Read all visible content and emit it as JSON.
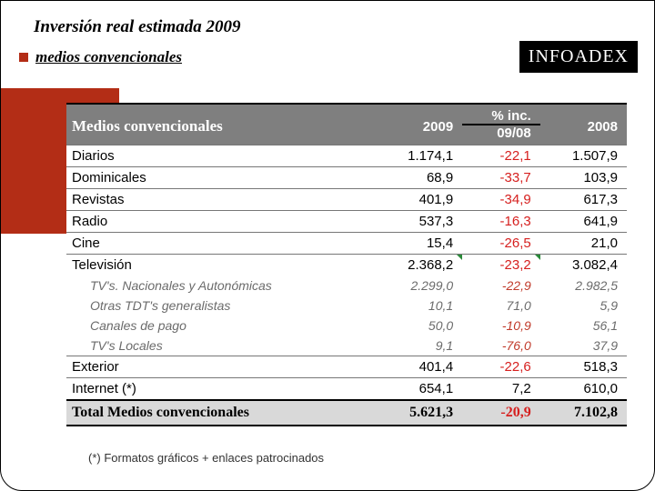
{
  "title": "Inversión real estimada 2009",
  "subtitle": "medios convencionales",
  "logo": "INFOADEX",
  "footnote": "(*) Formatos gráficos + enlaces patrocinados",
  "table": {
    "header": {
      "col1": "Medios convencionales",
      "col2": "2009",
      "col3_top": "% inc.",
      "col3_bot": "09/08",
      "col4": "2008"
    },
    "rows": [
      {
        "type": "main",
        "label": "Diarios",
        "v2009": "1.174,1",
        "pct": "-22,1",
        "v2008": "1.507,9"
      },
      {
        "type": "main",
        "label": "Dominicales",
        "v2009": "68,9",
        "pct": "-33,7",
        "v2008": "103,9"
      },
      {
        "type": "main",
        "label": "Revistas",
        "v2009": "401,9",
        "pct": "-34,9",
        "v2008": "617,3"
      },
      {
        "type": "main",
        "label": "Radio",
        "v2009": "537,3",
        "pct": "-16,3",
        "v2008": "641,9"
      },
      {
        "type": "main",
        "label": "Cine",
        "v2009": "15,4",
        "pct": "-26,5",
        "v2008": "21,0"
      },
      {
        "type": "main",
        "label": "Televisión",
        "v2009": "2.368,2",
        "pct": "-23,2",
        "v2008": "3.082,4",
        "corner": true
      },
      {
        "type": "sub",
        "label": "TV's. Nacionales y Autonómicas",
        "v2009": "2.299,0",
        "pct": "-22,9",
        "v2008": "2.982,5"
      },
      {
        "type": "sub",
        "label": "Otras TDT's generalistas",
        "v2009": "10,1",
        "pct": "71,0",
        "v2008": "5,9"
      },
      {
        "type": "sub",
        "label": "Canales de pago",
        "v2009": "50,0",
        "pct": "-10,9",
        "v2008": "56,1"
      },
      {
        "type": "sub",
        "label": "TV's Locales",
        "v2009": "9,1",
        "pct": "-76,0",
        "v2008": "37,9"
      },
      {
        "type": "main",
        "label": "Exterior",
        "v2009": "401,4",
        "pct": "-22,6",
        "v2008": "518,3"
      },
      {
        "type": "main",
        "label": "Internet (*)",
        "v2009": "654,1",
        "pct": "7,2",
        "v2008": "610,0"
      }
    ],
    "total": {
      "label": "Total Medios convencionales",
      "v2009": "5.621,3",
      "pct": "-20,9",
      "v2008": "7.102,8"
    }
  },
  "colors": {
    "accent": "#b32d16",
    "header_bg": "#7f7f7f",
    "total_bg": "#d9d9d9",
    "neg": "#d6201f",
    "sub_text": "#6b6b6b",
    "corner_mark": "#2a8a3a"
  }
}
